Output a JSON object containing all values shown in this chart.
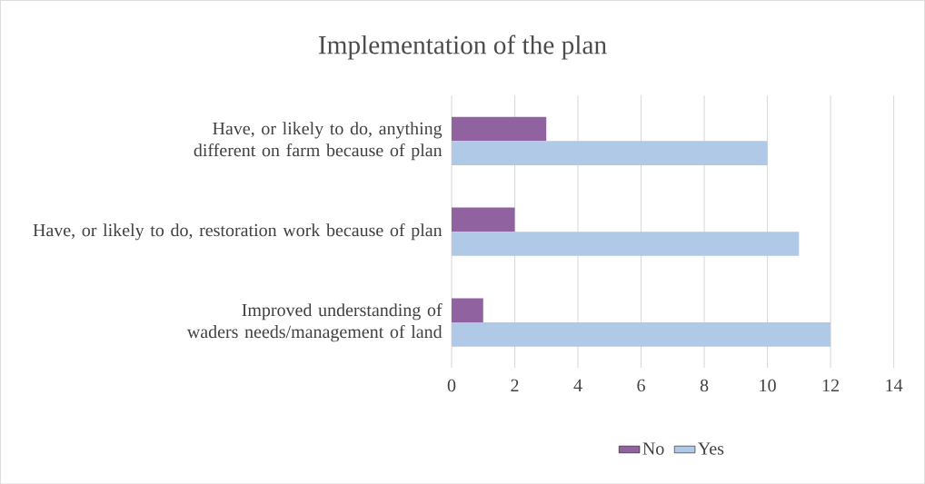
{
  "chart_data": {
    "type": "bar",
    "orientation": "horizontal",
    "title": "Implementation of the plan",
    "categories": [
      "Have, or likely to do, anything different on farm because of plan",
      "Have, or likely to do, restoration work because of plan",
      "Improved understanding of waders needs/management of land"
    ],
    "series": [
      {
        "name": "No",
        "color": "#9063a0",
        "values": [
          3,
          2,
          1
        ]
      },
      {
        "name": "Yes",
        "color": "#afc9e7",
        "values": [
          10,
          11,
          12
        ]
      }
    ],
    "xlim": [
      0,
      14
    ],
    "xticks": [
      0,
      2,
      4,
      6,
      8,
      10,
      12,
      14
    ],
    "grid": "x",
    "legend": "bottom"
  }
}
